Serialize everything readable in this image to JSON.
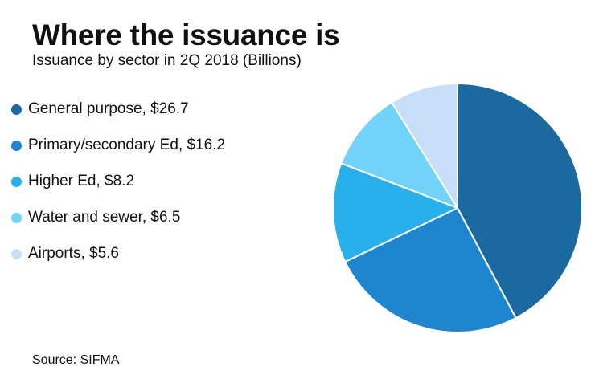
{
  "header": {
    "title": "Where the issuance is",
    "subtitle": "Issuance by sector in 2Q 2018 (Billions)"
  },
  "source": "Source: SIFMA",
  "chart_data": {
    "type": "pie",
    "title": "Where the issuance is",
    "subtitle": "Issuance by sector in 2Q 2018 (Billions)",
    "units": "Billions",
    "categories": [
      "General purpose",
      "Primary/secondary Ed",
      "Higher Ed",
      "Water and sewer",
      "Airports"
    ],
    "values": [
      26.7,
      16.2,
      8.2,
      6.5,
      5.6
    ],
    "legend_labels": [
      "General purpose, $26.7",
      "Primary/secondary Ed, $16.2",
      "Higher Ed, $8.2",
      "Water and sewer, $6.5",
      "Airports, $5.6"
    ],
    "colors": [
      "#1b69a1",
      "#1e86d1",
      "#27b0ea",
      "#72d3f9",
      "#c7def8"
    ],
    "legend_placement": "left",
    "start_angle": "12 o'clock",
    "direction": "clockwise"
  }
}
